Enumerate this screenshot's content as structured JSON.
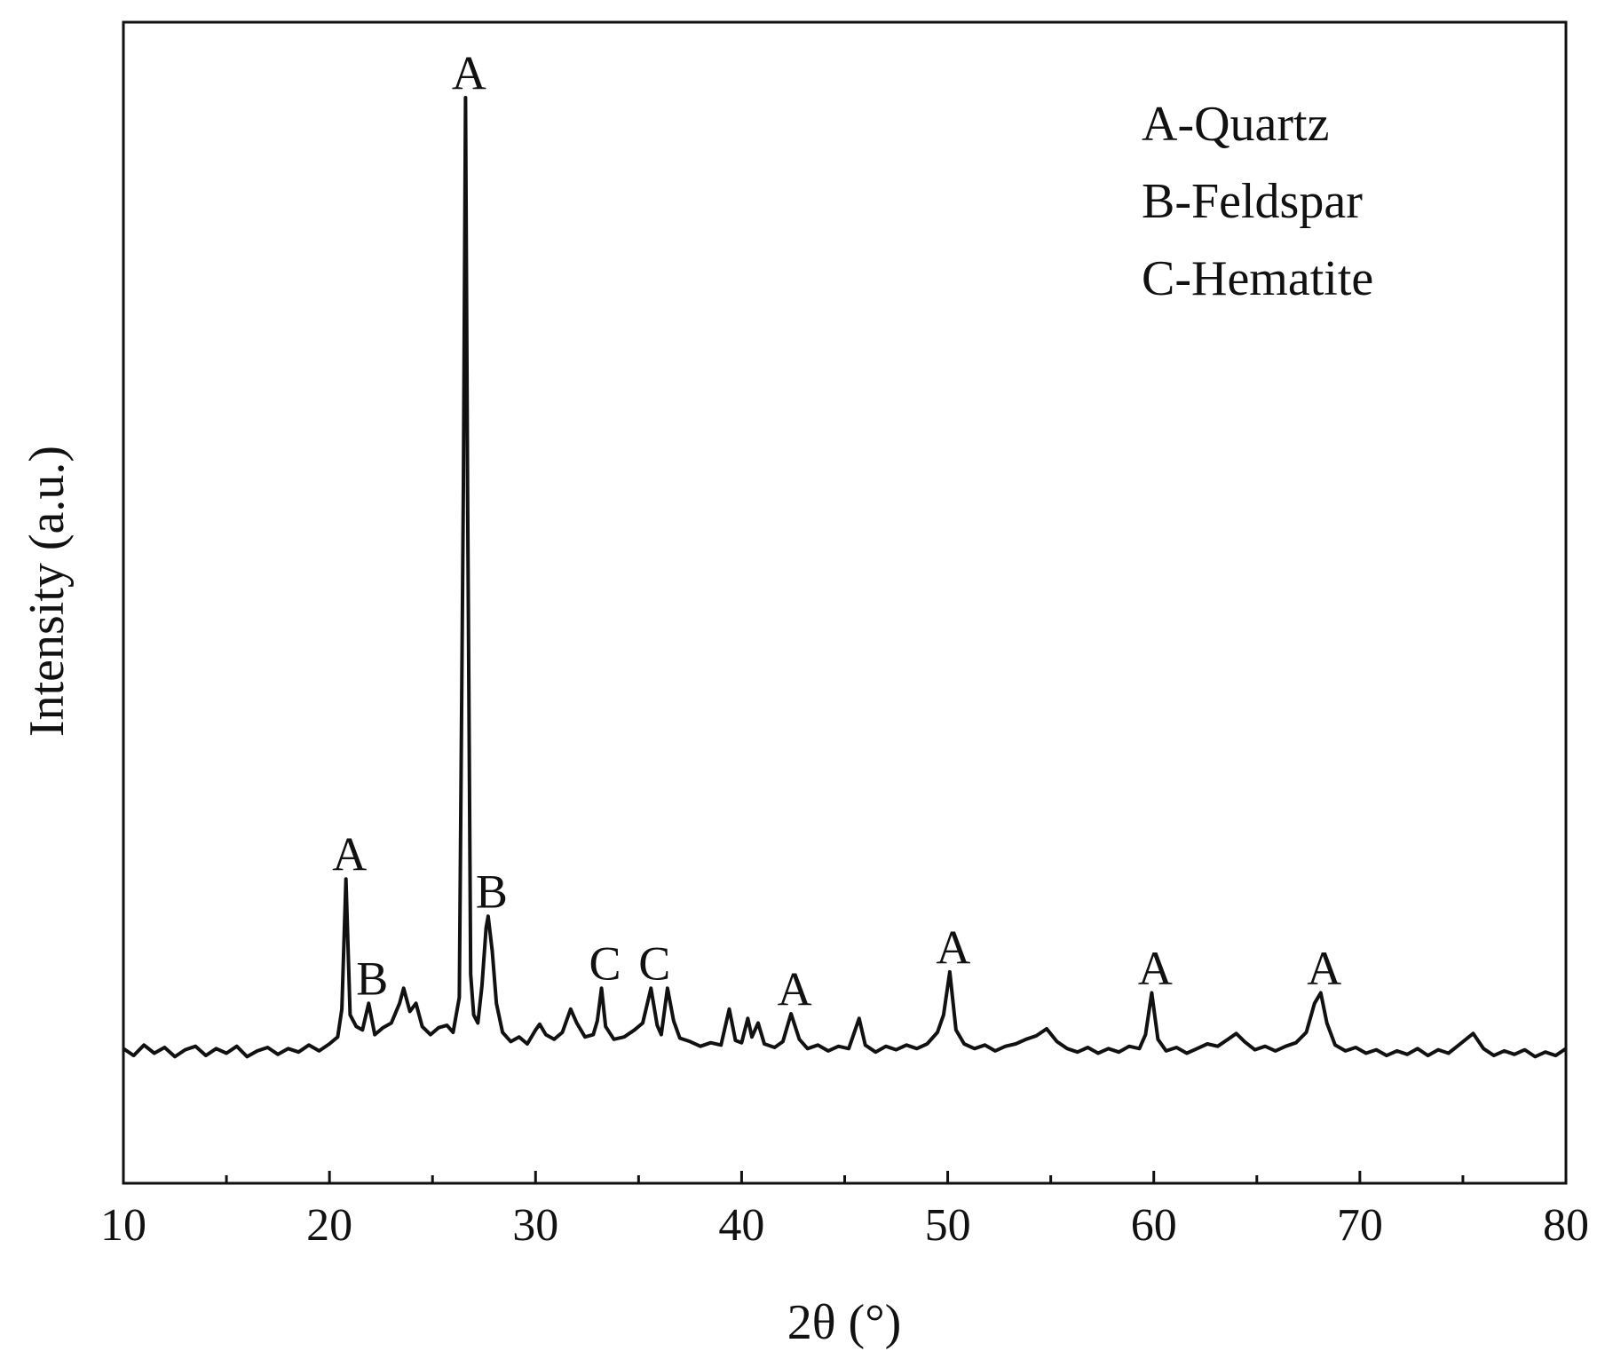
{
  "chart_data": {
    "type": "line",
    "x_label": "2θ (°)",
    "y_label": "Intensity (a.u.)",
    "legend_text": [
      "A-Quartz",
      "B-Feldspar",
      "C-Hematite"
    ],
    "color": "#111111",
    "xlim": [
      10,
      80
    ],
    "xticks": [
      10,
      20,
      30,
      40,
      50,
      60,
      70,
      80
    ],
    "xminorticks": [
      15,
      25,
      35,
      45,
      55,
      65,
      75
    ],
    "ylim": [
      0,
      100
    ],
    "x": [
      10.0,
      10.5,
      11.0,
      11.5,
      12.0,
      12.5,
      13.0,
      13.5,
      14.0,
      14.5,
      15.0,
      15.5,
      16.0,
      16.5,
      17.0,
      17.5,
      18.0,
      18.5,
      19.0,
      19.5,
      20.0,
      20.4,
      20.6,
      20.8,
      21.0,
      21.3,
      21.6,
      21.9,
      22.2,
      22.6,
      23.0,
      23.4,
      23.6,
      23.9,
      24.2,
      24.5,
      24.9,
      25.3,
      25.7,
      26.0,
      26.3,
      26.5,
      26.6,
      26.7,
      26.85,
      27.0,
      27.2,
      27.4,
      27.6,
      27.7,
      27.9,
      28.1,
      28.4,
      28.8,
      29.2,
      29.6,
      30.0,
      30.2,
      30.5,
      30.9,
      31.3,
      31.7,
      32.0,
      32.4,
      32.8,
      33.0,
      33.2,
      33.4,
      33.8,
      34.3,
      34.8,
      35.2,
      35.6,
      35.9,
      36.1,
      36.4,
      36.7,
      37.0,
      37.5,
      38.0,
      38.5,
      39.0,
      39.4,
      39.7,
      40.0,
      40.3,
      40.5,
      40.8,
      41.1,
      41.6,
      42.0,
      42.4,
      42.8,
      43.2,
      43.7,
      44.2,
      44.7,
      45.2,
      45.7,
      46.0,
      46.5,
      47.0,
      47.5,
      48.0,
      48.5,
      49.0,
      49.5,
      49.8,
      50.1,
      50.4,
      50.8,
      51.3,
      51.8,
      52.3,
      52.8,
      53.3,
      53.8,
      54.3,
      54.8,
      55.3,
      55.8,
      56.3,
      56.8,
      57.3,
      57.8,
      58.3,
      58.8,
      59.3,
      59.6,
      59.9,
      60.2,
      60.6,
      61.1,
      61.6,
      62.1,
      62.6,
      63.1,
      63.6,
      64.0,
      64.4,
      64.9,
      65.4,
      65.9,
      66.4,
      66.9,
      67.4,
      67.8,
      68.1,
      68.4,
      68.8,
      69.3,
      69.8,
      70.3,
      70.8,
      71.3,
      71.8,
      72.3,
      72.8,
      73.3,
      73.8,
      74.3,
      74.8,
      75.5,
      76.0,
      76.5,
      77.0,
      77.5,
      78.0,
      78.5,
      79.0,
      79.5,
      80.0
    ],
    "values": [
      11.6,
      11.0,
      11.9,
      11.2,
      11.7,
      10.9,
      11.5,
      11.8,
      11.0,
      11.6,
      11.2,
      11.8,
      10.9,
      11.4,
      11.7,
      11.1,
      11.6,
      11.3,
      11.9,
      11.4,
      12.0,
      12.6,
      15.0,
      26.2,
      14.5,
      13.5,
      13.2,
      15.5,
      12.8,
      13.4,
      13.8,
      15.5,
      16.8,
      14.8,
      15.5,
      13.5,
      12.8,
      13.4,
      13.6,
      13.0,
      16.0,
      60.0,
      93.5,
      60.0,
      18.0,
      14.5,
      13.8,
      17.0,
      22.0,
      23.0,
      20.0,
      15.5,
      13.0,
      12.2,
      12.6,
      12.0,
      13.2,
      13.7,
      12.8,
      12.4,
      13.0,
      15.0,
      13.8,
      12.6,
      12.8,
      14.0,
      16.8,
      13.5,
      12.4,
      12.6,
      13.2,
      13.8,
      16.8,
      13.6,
      12.8,
      16.8,
      14.0,
      12.5,
      12.2,
      11.8,
      12.1,
      11.9,
      15.0,
      12.3,
      12.1,
      14.2,
      12.6,
      13.8,
      12.0,
      11.7,
      12.2,
      14.6,
      12.4,
      11.6,
      11.9,
      11.4,
      11.8,
      11.6,
      14.2,
      11.9,
      11.3,
      11.8,
      11.5,
      11.9,
      11.6,
      12.0,
      13.0,
      14.5,
      18.2,
      13.2,
      12.0,
      11.6,
      11.9,
      11.4,
      11.8,
      12.0,
      12.4,
      12.7,
      13.3,
      12.2,
      11.6,
      11.3,
      11.7,
      11.2,
      11.6,
      11.3,
      11.8,
      11.6,
      12.8,
      16.4,
      12.4,
      11.4,
      11.7,
      11.2,
      11.6,
      12.0,
      11.8,
      12.4,
      12.9,
      12.2,
      11.5,
      11.8,
      11.4,
      11.8,
      12.1,
      13.0,
      15.5,
      16.4,
      13.8,
      11.9,
      11.4,
      11.7,
      11.2,
      11.5,
      11.0,
      11.4,
      11.1,
      11.6,
      11.0,
      11.5,
      11.2,
      11.9,
      12.9,
      11.6,
      11.0,
      11.4,
      11.1,
      11.5,
      10.9,
      11.3,
      11.0,
      11.6
    ],
    "annotations": [
      {
        "text": "A",
        "x": 20.8
      },
      {
        "text": "B",
        "x": 21.9
      },
      {
        "text": "A",
        "x": 26.6
      },
      {
        "text": "B",
        "x": 27.7
      },
      {
        "text": "C",
        "x": 33.2
      },
      {
        "text": "C",
        "x": 35.6
      },
      {
        "text": "A",
        "x": 42.4
      },
      {
        "text": "A",
        "x": 50.1
      },
      {
        "text": "A",
        "x": 59.9
      },
      {
        "text": "A",
        "x": 68.1
      }
    ]
  }
}
